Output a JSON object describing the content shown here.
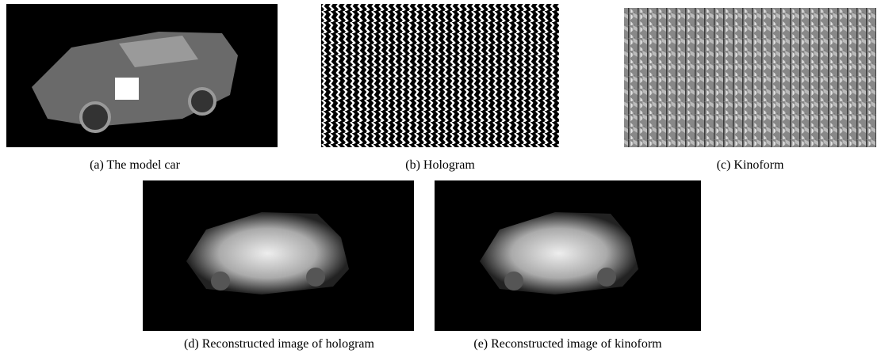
{
  "figure": {
    "panels": [
      {
        "caption": "(a) The model car"
      },
      {
        "caption": "(b) Hologram"
      },
      {
        "caption": "(c) Kinoform"
      },
      {
        "caption": "(d) Reconstructed image of hologram"
      },
      {
        "caption": "(e) Reconstructed image of kinoform"
      }
    ]
  }
}
